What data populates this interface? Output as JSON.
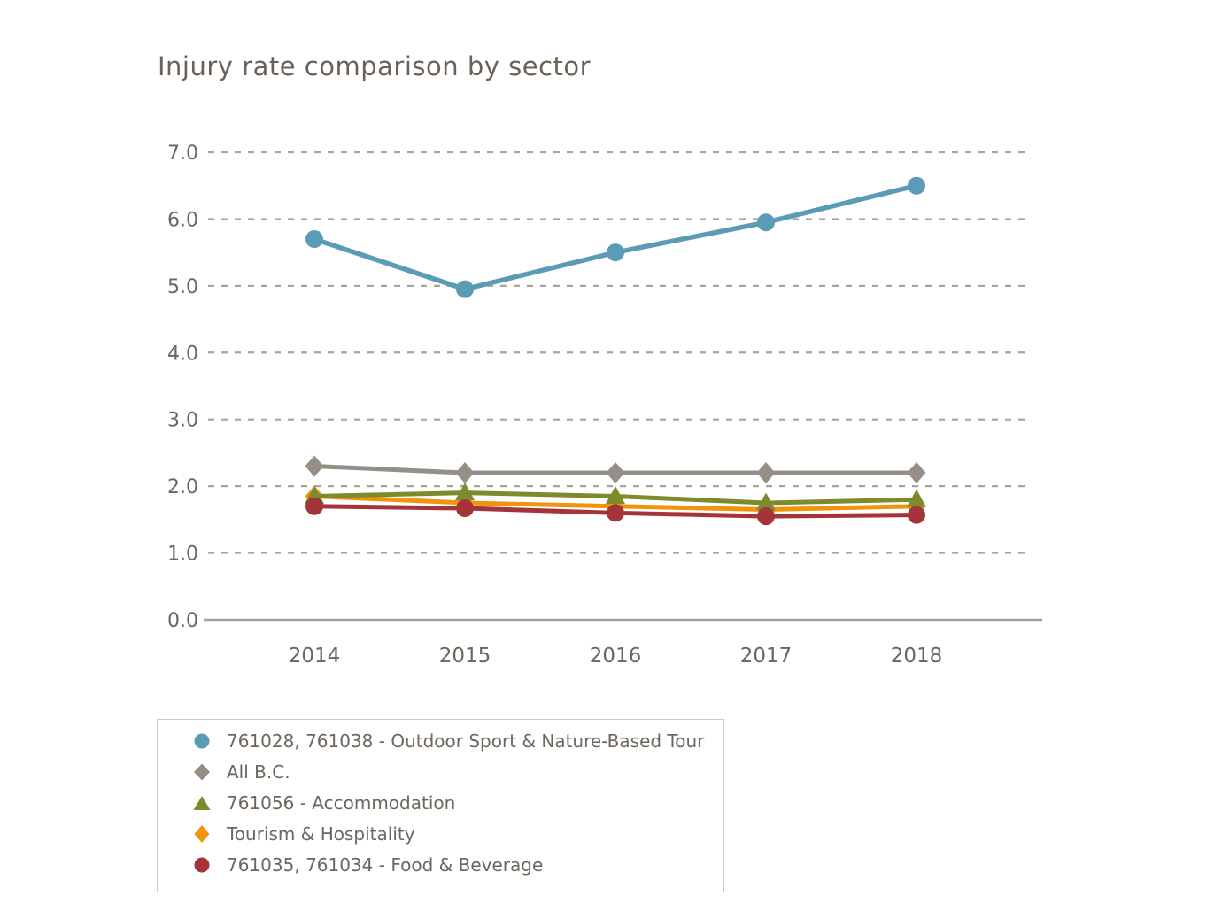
{
  "page": {
    "background": "#ffffff"
  },
  "chart_data": {
    "type": "line",
    "title": "Injury rate comparison by sector",
    "xlabel": "",
    "ylabel": "",
    "categories": [
      "2014",
      "2015",
      "2016",
      "2017",
      "2018"
    ],
    "ylim": [
      0.0,
      7.0
    ],
    "yticks": [
      0,
      1,
      2,
      3,
      4,
      5,
      6,
      7
    ],
    "ytick_labels": [
      "0.0",
      "1.0",
      "2.0",
      "3.0",
      "4.0",
      "5.0",
      "6.0",
      "7.0"
    ],
    "grid": "horizontal-dashed",
    "legend_position": "bottom-left-boxed",
    "draw_order": [
      0,
      1,
      3,
      2,
      4
    ],
    "styles": {
      "title_color": "#6b6157",
      "text_color": "#6e655c",
      "grid_color": "#aba49d",
      "axis_color": "#a6a099",
      "legend_border": "#c9c9c9"
    },
    "series": [
      {
        "id": "outdoor-sport-nature-tour",
        "name": "761028, 761038 - Outdoor Sport & Nature-Based Tour",
        "marker": "circle",
        "color": "#5b9bb5",
        "line_width": 5.5,
        "values": [
          5.7,
          4.95,
          5.5,
          5.95,
          6.5
        ]
      },
      {
        "id": "all-bc",
        "name": "All B.C.",
        "marker": "diamond",
        "color": "#958f88",
        "line_width": 5,
        "values": [
          2.3,
          2.2,
          2.2,
          2.2,
          2.2
        ]
      },
      {
        "id": "accommodation",
        "name": "761056 - Accommodation",
        "marker": "triangle",
        "color": "#7d8b2c",
        "line_width": 5,
        "values": [
          1.85,
          1.9,
          1.85,
          1.75,
          1.8
        ]
      },
      {
        "id": "tourism-hospitality",
        "name": "Tourism & Hospitality",
        "marker": "diamond",
        "color": "#f0930d",
        "line_width": 5,
        "values": [
          1.85,
          1.75,
          1.7,
          1.65,
          1.7
        ]
      },
      {
        "id": "food-beverage",
        "name": "761035, 761034 - Food & Beverage",
        "marker": "circle",
        "color": "#a5343a",
        "line_width": 5,
        "values": [
          1.7,
          1.67,
          1.6,
          1.55,
          1.57
        ]
      }
    ]
  }
}
